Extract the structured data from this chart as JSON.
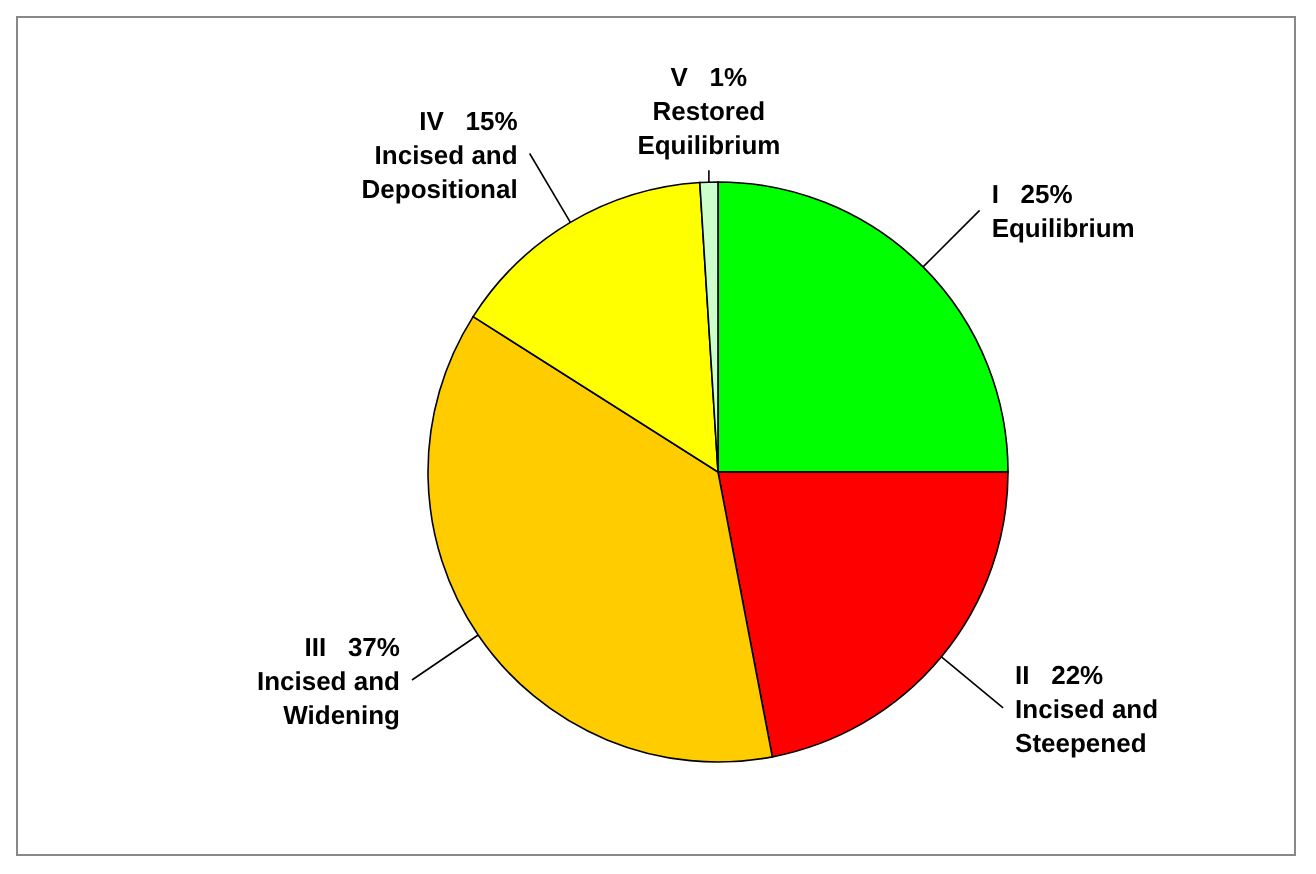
{
  "chart_data": {
    "type": "pie",
    "categories": [
      "Equilibrium",
      "Incised and\nSteepened",
      "Incised and\nWidening",
      "Incised and\nDepositional",
      "Restored\nEquilibrium"
    ],
    "values": [
      25,
      22,
      37,
      15,
      1
    ],
    "value_labels": [
      "I   25%",
      "II   22%",
      "III   37%",
      "IV   15%",
      "V   1%"
    ],
    "colors": [
      "#00ff00",
      "#ff0000",
      "#ffcc00",
      "#ffff00",
      "#ccffcc"
    ]
  }
}
